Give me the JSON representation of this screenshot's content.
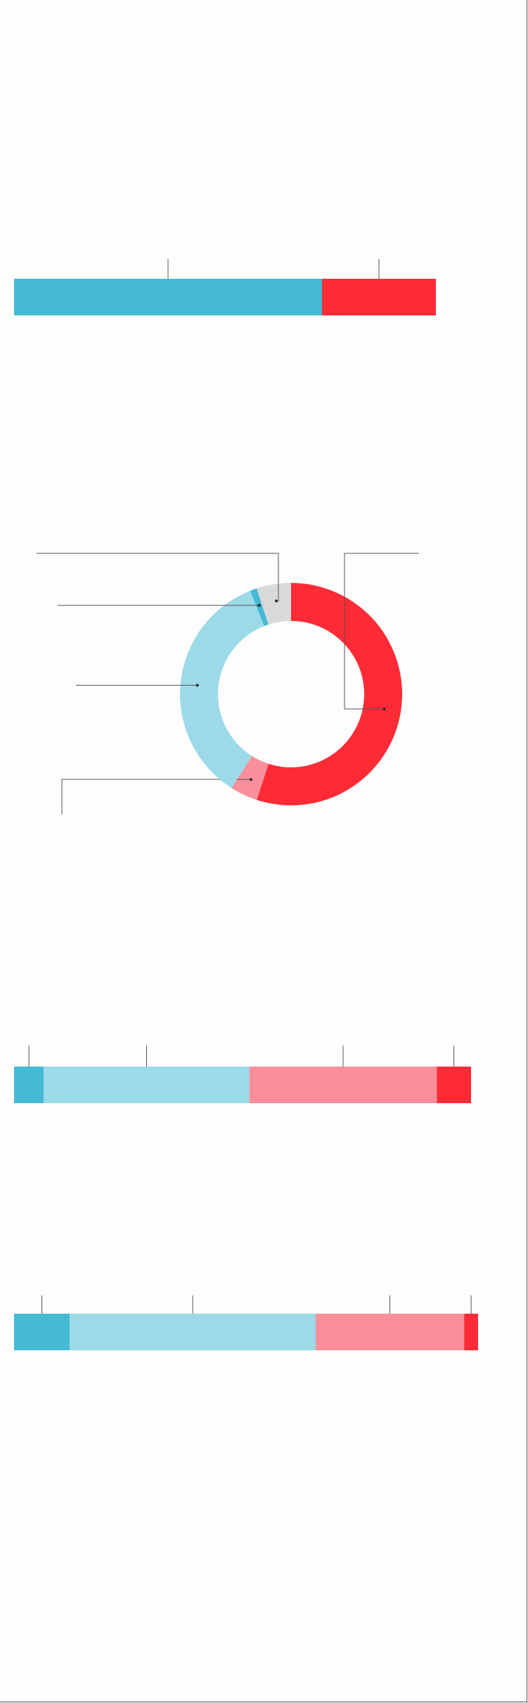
{
  "colors": {
    "dark_cyan": "#44BAD4",
    "light_cyan": "#9CDAE8",
    "pink": "#FA8F9B",
    "red": "#FC2B36",
    "gray": "#D9D9D9",
    "leader": "#555555",
    "frame": "#555555"
  },
  "chart_data": [
    {
      "type": "bar",
      "orientation": "horizontal-stacked",
      "segments": [
        {
          "value": 73,
          "color": "dark_cyan"
        },
        {
          "value": 27,
          "color": "red"
        }
      ]
    },
    {
      "type": "pie",
      "style": "donut",
      "slices": [
        {
          "value": 55,
          "color": "red"
        },
        {
          "value": 4,
          "color": "pink"
        },
        {
          "value": 35,
          "color": "light_cyan"
        },
        {
          "value": 1,
          "color": "dark_cyan"
        },
        {
          "value": 5,
          "color": "gray"
        }
      ]
    },
    {
      "type": "bar",
      "orientation": "horizontal-stacked",
      "segments": [
        {
          "value": 6.5,
          "color": "dark_cyan"
        },
        {
          "value": 45,
          "color": "light_cyan"
        },
        {
          "value": 41,
          "color": "pink"
        },
        {
          "value": 7.5,
          "color": "red"
        }
      ]
    },
    {
      "type": "bar",
      "orientation": "horizontal-stacked",
      "segments": [
        {
          "value": 12,
          "color": "dark_cyan"
        },
        {
          "value": 53,
          "color": "light_cyan"
        },
        {
          "value": 32,
          "color": "pink"
        },
        {
          "value": 3,
          "color": "red"
        }
      ]
    }
  ]
}
